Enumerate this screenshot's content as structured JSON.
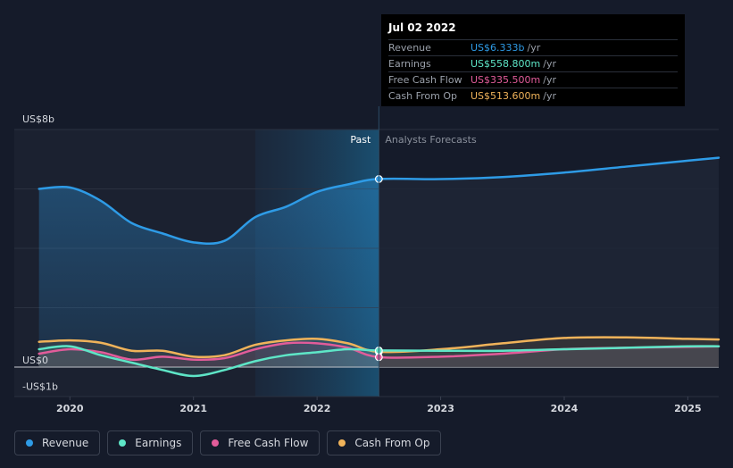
{
  "tooltip": {
    "date": "Jul 02 2022",
    "rows": [
      {
        "label": "Revenue",
        "value": "US$6.333b",
        "unit": "/yr",
        "color": "#2e9be6"
      },
      {
        "label": "Earnings",
        "value": "US$558.800m",
        "unit": "/yr",
        "color": "#5ee6c7"
      },
      {
        "label": "Free Cash Flow",
        "value": "US$335.500m",
        "unit": "/yr",
        "color": "#e25c9a"
      },
      {
        "label": "Cash From Op",
        "value": "US$513.600m",
        "unit": "/yr",
        "color": "#f0b35a"
      }
    ]
  },
  "legend": [
    {
      "label": "Revenue",
      "color": "#2e9be6"
    },
    {
      "label": "Earnings",
      "color": "#5ee6c7"
    },
    {
      "label": "Free Cash Flow",
      "color": "#e25c9a"
    },
    {
      "label": "Cash From Op",
      "color": "#f0b35a"
    }
  ],
  "chart_data": {
    "type": "line",
    "y_tick_labels": [
      "US$8b",
      "US$0",
      "-US$1b"
    ],
    "x_tick_labels": [
      "2020",
      "2021",
      "2022",
      "2023",
      "2024",
      "2025"
    ],
    "past_label": "Past",
    "forecast_label": "Analysts Forecasts",
    "ylim": [
      -1,
      8
    ],
    "xlim": [
      2019.55,
      2025.25
    ],
    "divider_x": 2022.5,
    "highlight_start_x": 2021.5,
    "grid": true,
    "legend_position": "bottom",
    "series": [
      {
        "name": "Revenue",
        "color": "#2e9be6",
        "area": true,
        "points": [
          [
            2019.75,
            6.0
          ],
          [
            2020.0,
            6.05
          ],
          [
            2020.25,
            5.6
          ],
          [
            2020.5,
            4.85
          ],
          [
            2020.75,
            4.5
          ],
          [
            2021.0,
            4.2
          ],
          [
            2021.25,
            4.25
          ],
          [
            2021.5,
            5.05
          ],
          [
            2021.75,
            5.4
          ],
          [
            2022.0,
            5.9
          ],
          [
            2022.25,
            6.15
          ],
          [
            2022.5,
            6.333
          ],
          [
            2023.0,
            6.33
          ],
          [
            2023.5,
            6.4
          ],
          [
            2024.0,
            6.55
          ],
          [
            2024.5,
            6.75
          ],
          [
            2025.0,
            6.95
          ],
          [
            2025.25,
            7.05
          ]
        ]
      },
      {
        "name": "Cash From Op",
        "color": "#f0b35a",
        "points": [
          [
            2019.75,
            0.85
          ],
          [
            2020.0,
            0.9
          ],
          [
            2020.25,
            0.82
          ],
          [
            2020.5,
            0.55
          ],
          [
            2020.75,
            0.55
          ],
          [
            2021.0,
            0.35
          ],
          [
            2021.25,
            0.4
          ],
          [
            2021.5,
            0.75
          ],
          [
            2021.75,
            0.9
          ],
          [
            2022.0,
            0.95
          ],
          [
            2022.25,
            0.8
          ],
          [
            2022.5,
            0.5136
          ],
          [
            2023.0,
            0.6
          ],
          [
            2023.5,
            0.8
          ],
          [
            2024.0,
            0.98
          ],
          [
            2024.5,
            1.0
          ],
          [
            2025.0,
            0.95
          ],
          [
            2025.25,
            0.93
          ]
        ]
      },
      {
        "name": "Free Cash Flow",
        "color": "#e25c9a",
        "points": [
          [
            2019.75,
            0.45
          ],
          [
            2020.0,
            0.6
          ],
          [
            2020.25,
            0.5
          ],
          [
            2020.5,
            0.25
          ],
          [
            2020.75,
            0.35
          ],
          [
            2021.0,
            0.25
          ],
          [
            2021.25,
            0.3
          ],
          [
            2021.5,
            0.6
          ],
          [
            2021.75,
            0.8
          ],
          [
            2022.0,
            0.8
          ],
          [
            2022.25,
            0.65
          ],
          [
            2022.5,
            0.3355
          ],
          [
            2023.0,
            0.35
          ],
          [
            2023.5,
            0.45
          ],
          [
            2024.0,
            0.6
          ],
          [
            2024.5,
            0.65
          ],
          [
            2025.0,
            0.68
          ],
          [
            2025.25,
            0.7
          ]
        ]
      },
      {
        "name": "Earnings",
        "color": "#5ee6c7",
        "points": [
          [
            2019.75,
            0.6
          ],
          [
            2020.0,
            0.7
          ],
          [
            2020.25,
            0.4
          ],
          [
            2020.5,
            0.15
          ],
          [
            2020.75,
            -0.1
          ],
          [
            2021.0,
            -0.3
          ],
          [
            2021.25,
            -0.1
          ],
          [
            2021.5,
            0.2
          ],
          [
            2021.75,
            0.4
          ],
          [
            2022.0,
            0.5
          ],
          [
            2022.25,
            0.6
          ],
          [
            2022.5,
            0.5588
          ],
          [
            2023.0,
            0.55
          ],
          [
            2023.5,
            0.55
          ],
          [
            2024.0,
            0.6
          ],
          [
            2024.5,
            0.65
          ],
          [
            2025.0,
            0.7
          ],
          [
            2025.25,
            0.7
          ]
        ]
      }
    ]
  }
}
